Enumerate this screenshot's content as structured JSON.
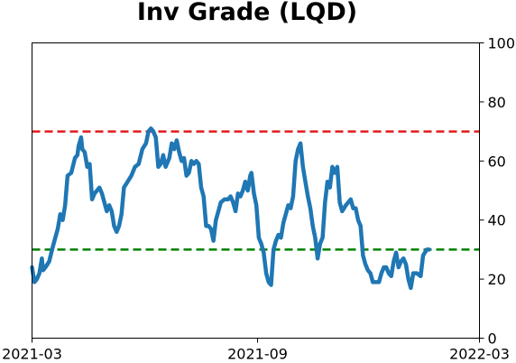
{
  "chart_data": {
    "type": "line",
    "title": "Inv Grade (LQD)",
    "xlabel": "",
    "ylabel": "",
    "x_range": [
      "2021-03-01",
      "2022-03-01"
    ],
    "xticks": [
      {
        "date": "2021-03-01",
        "label": "2021-03"
      },
      {
        "date": "2021-09-01",
        "label": "2021-09"
      },
      {
        "date": "2022-03-01",
        "label": "2022-03"
      }
    ],
    "ylim": [
      0,
      100
    ],
    "yticks": [
      0,
      20,
      40,
      60,
      80,
      100
    ],
    "y_axis_side": "right",
    "grid": false,
    "reference_lines": [
      {
        "y": 70,
        "color": "#e31a1c",
        "style": "dashed"
      },
      {
        "y": 30,
        "color": "#008000",
        "style": "dashed"
      }
    ],
    "series": [
      {
        "color": "#1f77b4",
        "points": [
          [
            "2021-03-01",
            24
          ],
          [
            "2021-03-03",
            19
          ],
          [
            "2021-03-05",
            20
          ],
          [
            "2021-03-07",
            22
          ],
          [
            "2021-03-09",
            27
          ],
          [
            "2021-03-10",
            23
          ],
          [
            "2021-03-12",
            24
          ],
          [
            "2021-03-15",
            26
          ],
          [
            "2021-03-18",
            31
          ],
          [
            "2021-03-22",
            37
          ],
          [
            "2021-03-24",
            42
          ],
          [
            "2021-03-26",
            40
          ],
          [
            "2021-03-28",
            45
          ],
          [
            "2021-03-30",
            55
          ],
          [
            "2021-04-02",
            56
          ],
          [
            "2021-04-05",
            61
          ],
          [
            "2021-04-07",
            62
          ],
          [
            "2021-04-08",
            65
          ],
          [
            "2021-04-10",
            68
          ],
          [
            "2021-04-11",
            64
          ],
          [
            "2021-04-13",
            63
          ],
          [
            "2021-04-15",
            58
          ],
          [
            "2021-04-17",
            59
          ],
          [
            "2021-04-19",
            47
          ],
          [
            "2021-04-21",
            49
          ],
          [
            "2021-04-23",
            50
          ],
          [
            "2021-04-25",
            51
          ],
          [
            "2021-04-27",
            49
          ],
          [
            "2021-04-29",
            46
          ],
          [
            "2021-05-01",
            43
          ],
          [
            "2021-05-03",
            45
          ],
          [
            "2021-05-05",
            43
          ],
          [
            "2021-05-07",
            38
          ],
          [
            "2021-05-09",
            36
          ],
          [
            "2021-05-11",
            38
          ],
          [
            "2021-05-13",
            42
          ],
          [
            "2021-05-15",
            51
          ],
          [
            "2021-05-18",
            53
          ],
          [
            "2021-05-21",
            55
          ],
          [
            "2021-05-24",
            58
          ],
          [
            "2021-05-27",
            59
          ],
          [
            "2021-05-30",
            64
          ],
          [
            "2021-06-02",
            66
          ],
          [
            "2021-06-04",
            70
          ],
          [
            "2021-06-06",
            71
          ],
          [
            "2021-06-08",
            70
          ],
          [
            "2021-06-10",
            68
          ],
          [
            "2021-06-12",
            58
          ],
          [
            "2021-06-14",
            59
          ],
          [
            "2021-06-16",
            62
          ],
          [
            "2021-06-18",
            58
          ],
          [
            "2021-06-21",
            61
          ],
          [
            "2021-06-23",
            66
          ],
          [
            "2021-06-25",
            64
          ],
          [
            "2021-06-27",
            67
          ],
          [
            "2021-06-29",
            63
          ],
          [
            "2021-07-01",
            60
          ],
          [
            "2021-07-03",
            61
          ],
          [
            "2021-07-05",
            55
          ],
          [
            "2021-07-07",
            56
          ],
          [
            "2021-07-09",
            60
          ],
          [
            "2021-07-11",
            59
          ],
          [
            "2021-07-13",
            60
          ],
          [
            "2021-07-15",
            59
          ],
          [
            "2021-07-17",
            51
          ],
          [
            "2021-07-19",
            48
          ],
          [
            "2021-07-21",
            38
          ],
          [
            "2021-07-23",
            38
          ],
          [
            "2021-07-25",
            37
          ],
          [
            "2021-07-27",
            33
          ],
          [
            "2021-07-29",
            40
          ],
          [
            "2021-07-31",
            43
          ],
          [
            "2021-08-02",
            46
          ],
          [
            "2021-08-05",
            47
          ],
          [
            "2021-08-08",
            47
          ],
          [
            "2021-08-10",
            48
          ],
          [
            "2021-08-12",
            46
          ],
          [
            "2021-08-14",
            43
          ],
          [
            "2021-08-16",
            49
          ],
          [
            "2021-08-18",
            48
          ],
          [
            "2021-08-20",
            50
          ],
          [
            "2021-08-22",
            53
          ],
          [
            "2021-08-24",
            50
          ],
          [
            "2021-08-26",
            55
          ],
          [
            "2021-08-27",
            56
          ],
          [
            "2021-08-29",
            49
          ],
          [
            "2021-08-31",
            45
          ],
          [
            "2021-09-02",
            34
          ],
          [
            "2021-09-04",
            32
          ],
          [
            "2021-09-06",
            29
          ],
          [
            "2021-09-08",
            22
          ],
          [
            "2021-09-10",
            19
          ],
          [
            "2021-09-12",
            18
          ],
          [
            "2021-09-14",
            30
          ],
          [
            "2021-09-16",
            33
          ],
          [
            "2021-09-18",
            35
          ],
          [
            "2021-09-20",
            34
          ],
          [
            "2021-09-22",
            39
          ],
          [
            "2021-09-24",
            42
          ],
          [
            "2021-09-26",
            45
          ],
          [
            "2021-09-28",
            44
          ],
          [
            "2021-09-30",
            48
          ],
          [
            "2021-10-02",
            60
          ],
          [
            "2021-10-04",
            64
          ],
          [
            "2021-10-06",
            66
          ],
          [
            "2021-10-08",
            58
          ],
          [
            "2021-10-10",
            53
          ],
          [
            "2021-10-12",
            48
          ],
          [
            "2021-10-14",
            44
          ],
          [
            "2021-10-16",
            38
          ],
          [
            "2021-10-18",
            34
          ],
          [
            "2021-10-20",
            27
          ],
          [
            "2021-10-22",
            32
          ],
          [
            "2021-10-24",
            34
          ],
          [
            "2021-10-26",
            46
          ],
          [
            "2021-10-28",
            53
          ],
          [
            "2021-10-30",
            51
          ],
          [
            "2021-11-01",
            58
          ],
          [
            "2021-11-03",
            56
          ],
          [
            "2021-11-05",
            58
          ],
          [
            "2021-11-07",
            46
          ],
          [
            "2021-11-09",
            43
          ],
          [
            "2021-11-12",
            45
          ],
          [
            "2021-11-14",
            46
          ],
          [
            "2021-11-16",
            47
          ],
          [
            "2021-11-18",
            44
          ],
          [
            "2021-11-20",
            44
          ],
          [
            "2021-11-22",
            40
          ],
          [
            "2021-11-24",
            38
          ],
          [
            "2021-11-26",
            28
          ],
          [
            "2021-11-28",
            25
          ],
          [
            "2021-11-30",
            23
          ],
          [
            "2021-12-02",
            22
          ],
          [
            "2021-12-04",
            19
          ],
          [
            "2021-12-07",
            19
          ],
          [
            "2021-12-09",
            19
          ],
          [
            "2021-12-11",
            22
          ],
          [
            "2021-12-13",
            24
          ],
          [
            "2021-12-15",
            24
          ],
          [
            "2021-12-17",
            22
          ],
          [
            "2021-12-19",
            21
          ],
          [
            "2021-12-21",
            26
          ],
          [
            "2021-12-23",
            29
          ],
          [
            "2021-12-25",
            24
          ],
          [
            "2021-12-27",
            26
          ],
          [
            "2021-12-29",
            27
          ],
          [
            "2021-12-31",
            25
          ],
          [
            "2022-01-02",
            20
          ],
          [
            "2022-01-04",
            17
          ],
          [
            "2022-01-06",
            22
          ],
          [
            "2022-01-09",
            22
          ],
          [
            "2022-01-12",
            21
          ],
          [
            "2022-01-14",
            28
          ],
          [
            "2022-01-17",
            30
          ],
          [
            "2022-01-19",
            30
          ]
        ]
      }
    ]
  }
}
